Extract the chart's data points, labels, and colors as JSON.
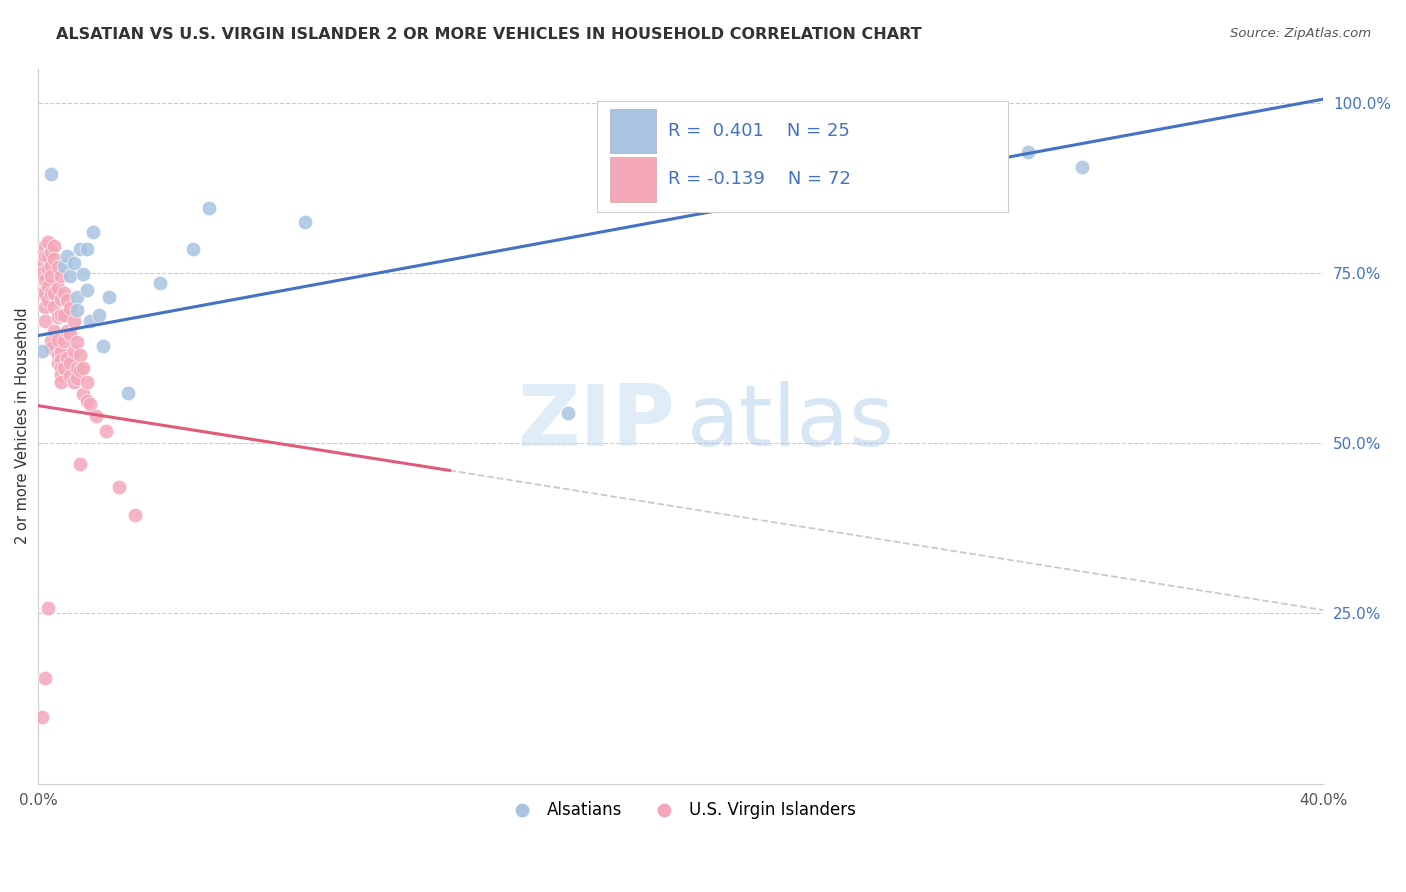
{
  "title": "ALSATIAN VS U.S. VIRGIN ISLANDER 2 OR MORE VEHICLES IN HOUSEHOLD CORRELATION CHART",
  "source": "Source: ZipAtlas.com",
  "ylabel": "2 or more Vehicles in Household",
  "xlim": [
    0.0,
    0.4
  ],
  "ylim": [
    0.0,
    1.05
  ],
  "ytick_positions": [
    0.25,
    0.5,
    0.75,
    1.0
  ],
  "ytick_labels": [
    "25.0%",
    "50.0%",
    "75.0%",
    "100.0%"
  ],
  "xtick_positions": [
    0.0,
    0.05,
    0.1,
    0.15,
    0.2,
    0.25,
    0.3,
    0.35,
    0.4
  ],
  "xtick_labels": [
    "0.0%",
    "",
    "",
    "",
    "",
    "",
    "",
    "",
    "40.0%"
  ],
  "legend_R_alsatian": "0.401",
  "legend_N_alsatian": "25",
  "legend_R_virgin": "-0.139",
  "legend_N_virgin": "72",
  "color_alsatian_fill": "#a8c4e0",
  "color_virgin_fill": "#f4a7b9",
  "color_line_alsatian": "#4472c4",
  "color_line_virgin": "#e05a7a",
  "color_dashed": "#c8c8d8",
  "color_axis_right": "#4472c4",
  "color_title": "#333333",
  "color_source": "#555555",
  "color_grid": "#cccccc",
  "alsatian_x": [
    0.001,
    0.004,
    0.008,
    0.009,
    0.01,
    0.011,
    0.012,
    0.012,
    0.013,
    0.014,
    0.015,
    0.015,
    0.016,
    0.017,
    0.019,
    0.02,
    0.022,
    0.028,
    0.038,
    0.048,
    0.053,
    0.083,
    0.165,
    0.308,
    0.325
  ],
  "alsatian_y": [
    0.635,
    0.895,
    0.76,
    0.775,
    0.745,
    0.765,
    0.715,
    0.695,
    0.785,
    0.748,
    0.725,
    0.785,
    0.68,
    0.81,
    0.688,
    0.643,
    0.715,
    0.573,
    0.735,
    0.785,
    0.845,
    0.825,
    0.545,
    0.928,
    0.905
  ],
  "virgin_x": [
    0.001,
    0.001,
    0.001,
    0.001,
    0.002,
    0.002,
    0.002,
    0.002,
    0.002,
    0.002,
    0.003,
    0.003,
    0.003,
    0.003,
    0.003,
    0.004,
    0.004,
    0.004,
    0.004,
    0.004,
    0.004,
    0.005,
    0.005,
    0.005,
    0.005,
    0.005,
    0.006,
    0.006,
    0.006,
    0.006,
    0.006,
    0.006,
    0.007,
    0.007,
    0.007,
    0.007,
    0.007,
    0.007,
    0.007,
    0.007,
    0.008,
    0.008,
    0.008,
    0.008,
    0.009,
    0.009,
    0.009,
    0.01,
    0.01,
    0.01,
    0.01,
    0.011,
    0.011,
    0.011,
    0.012,
    0.012,
    0.012,
    0.013,
    0.013,
    0.014,
    0.014,
    0.015,
    0.015,
    0.016,
    0.018,
    0.013,
    0.021,
    0.025,
    0.03,
    0.002,
    0.003,
    0.001
  ],
  "virgin_y": [
    0.78,
    0.765,
    0.75,
    0.72,
    0.79,
    0.775,
    0.74,
    0.72,
    0.7,
    0.68,
    0.795,
    0.775,
    0.755,
    0.73,
    0.71,
    0.78,
    0.76,
    0.745,
    0.72,
    0.65,
    0.64,
    0.79,
    0.77,
    0.72,
    0.7,
    0.665,
    0.758,
    0.728,
    0.685,
    0.652,
    0.63,
    0.618,
    0.745,
    0.712,
    0.688,
    0.634,
    0.622,
    0.61,
    0.6,
    0.59,
    0.72,
    0.688,
    0.65,
    0.61,
    0.71,
    0.665,
    0.625,
    0.698,
    0.66,
    0.618,
    0.598,
    0.68,
    0.635,
    0.59,
    0.648,
    0.61,
    0.595,
    0.63,
    0.608,
    0.61,
    0.572,
    0.59,
    0.562,
    0.558,
    0.54,
    0.47,
    0.518,
    0.435,
    0.395,
    0.155,
    0.258,
    0.098
  ],
  "line_alsatian_x0": 0.0,
  "line_alsatian_x1": 0.4,
  "line_alsatian_y0": 0.658,
  "line_alsatian_y1": 1.005,
  "line_virgin_solid_x0": 0.0,
  "line_virgin_solid_x1": 0.128,
  "line_virgin_solid_y0": 0.555,
  "line_virgin_solid_y1": 0.46,
  "line_virgin_dash_x0": 0.128,
  "line_virgin_dash_x1": 0.4,
  "line_virgin_dash_y0": 0.46,
  "line_virgin_dash_y1": 0.255,
  "watermark_zip": "ZIP",
  "watermark_atlas": "atlas",
  "background_color": "#ffffff"
}
